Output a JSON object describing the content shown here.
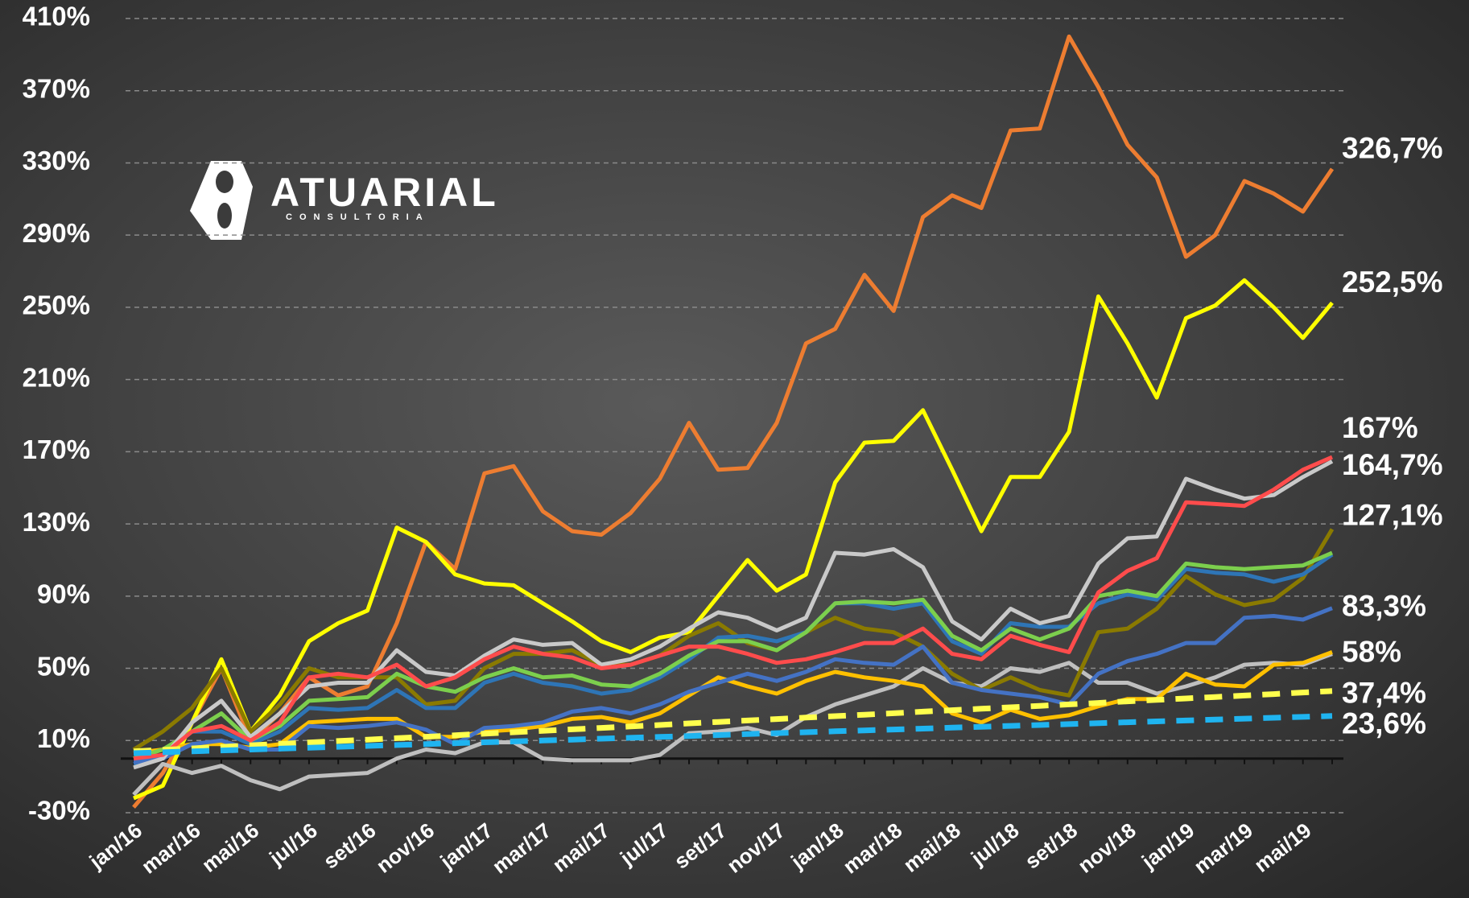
{
  "logo": {
    "name": "ATUARIAL",
    "subtitle": "CONSULTORIA"
  },
  "chart_data": {
    "type": "line",
    "categories": [
      "jan/16",
      null,
      "mar/16",
      null,
      "mai/16",
      null,
      "jul/16",
      null,
      "set/16",
      null,
      "nov/16",
      null,
      "jan/17",
      null,
      "mar/17",
      null,
      "mai/17",
      null,
      "jul/17",
      null,
      "set/17",
      null,
      "nov/17",
      null,
      "jan/18",
      null,
      "mar/18",
      null,
      "mai/18",
      null,
      "jul/18",
      null,
      "set/18",
      null,
      "nov/18",
      null,
      "jan/19",
      null,
      "mar/19",
      null,
      "mai/19",
      null
    ],
    "ylim": [
      -30,
      410
    ],
    "yticks": [
      {
        "value": -30,
        "label": "-30%"
      },
      {
        "value": 10,
        "label": "10%"
      },
      {
        "value": 50,
        "label": "50%"
      },
      {
        "value": 90,
        "label": "90%"
      },
      {
        "value": 130,
        "label": "130%"
      },
      {
        "value": 170,
        "label": "170%"
      },
      {
        "value": 210,
        "label": "210%"
      },
      {
        "value": 250,
        "label": "250%"
      },
      {
        "value": 290,
        "label": "290%"
      },
      {
        "value": 330,
        "label": "330%"
      },
      {
        "value": 370,
        "label": "370%"
      },
      {
        "value": 410,
        "label": "410%"
      }
    ],
    "grid": true,
    "series": [
      {
        "color": "#ed7d31",
        "label_color": "#ffc000",
        "end_label": "326,7%",
        "values": [
          -27,
          -8,
          20,
          50,
          10,
          25,
          45,
          35,
          40,
          75,
          120,
          105,
          158,
          162,
          137,
          126,
          124,
          136,
          155,
          186,
          160,
          161,
          186,
          230,
          238,
          268,
          248,
          300,
          312,
          305,
          348,
          349,
          400,
          372,
          340,
          322,
          278,
          290,
          320,
          313,
          303,
          326.7
        ]
      },
      {
        "color": "#ffff00",
        "label_color": "#ffff00",
        "end_label": "252,5%",
        "values": [
          -22,
          -15,
          20,
          55,
          15,
          35,
          65,
          75,
          82,
          128,
          120,
          102,
          97,
          96,
          86,
          76,
          65,
          59,
          67,
          70,
          90,
          110,
          93,
          102,
          153,
          175,
          176,
          193,
          160,
          126,
          156,
          156,
          181,
          256,
          230,
          200,
          244,
          251,
          265,
          250,
          233,
          252.5
        ]
      },
      {
        "color": "#bfbfbf",
        "label_color": "#ffffff",
        "end_label": "58%",
        "values": [
          -20,
          -3,
          -8,
          -4,
          -12,
          -17,
          -10,
          -9,
          -8,
          0,
          5,
          3,
          9,
          9,
          0,
          -1,
          -1,
          -1,
          2,
          14,
          15,
          17,
          13,
          23,
          30,
          35,
          40,
          50,
          42,
          40,
          50,
          48,
          53,
          42,
          42,
          36,
          40,
          45,
          52,
          53,
          52,
          58
        ]
      },
      {
        "color": "#ffc000",
        "values": [
          3,
          5,
          8,
          8,
          6,
          8,
          20,
          21,
          22,
          22,
          12,
          12,
          15,
          16,
          18,
          22,
          23,
          20,
          25,
          35,
          45,
          40,
          36,
          43,
          48,
          45,
          43,
          40,
          25,
          20,
          27,
          22,
          24,
          29,
          33,
          33,
          47,
          41,
          40,
          52,
          53,
          59
        ]
      },
      {
        "color": "#8a7a00",
        "label_color": "#8a7f10",
        "end_label": "127,1%",
        "values": [
          5,
          15,
          28,
          50,
          15,
          30,
          50,
          45,
          45,
          45,
          30,
          32,
          50,
          58,
          58,
          60,
          52,
          52,
          57,
          68,
          75,
          64,
          60,
          70,
          78,
          72,
          70,
          62,
          47,
          38,
          45,
          38,
          35,
          70,
          72,
          83,
          101,
          91,
          85,
          88,
          100,
          127.1
        ]
      },
      {
        "color": "#2e75b6",
        "values": [
          -3,
          2,
          15,
          15,
          8,
          15,
          28,
          27,
          28,
          38,
          28,
          28,
          42,
          47,
          42,
          40,
          36,
          38,
          45,
          55,
          67,
          68,
          65,
          70,
          86,
          86,
          83,
          86,
          65,
          58,
          75,
          73,
          73,
          86,
          91,
          88,
          105,
          103,
          102,
          98,
          102,
          113
        ]
      },
      {
        "color": "#7ccf4d",
        "values": [
          0,
          5,
          15,
          25,
          10,
          18,
          32,
          33,
          34,
          47,
          40,
          37,
          45,
          50,
          45,
          46,
          41,
          40,
          47,
          57,
          65,
          65,
          60,
          70,
          86,
          87,
          86,
          88,
          68,
          60,
          72,
          66,
          72,
          90,
          93,
          90,
          108,
          106,
          105,
          106,
          107,
          114
        ]
      },
      {
        "color": "#4472c4",
        "label_color": "#4a86e8",
        "end_label": "83,3%",
        "values": [
          -2,
          0,
          8,
          10,
          5,
          5,
          18,
          17,
          18,
          20,
          16,
          8,
          17,
          18,
          20,
          26,
          28,
          25,
          30,
          37,
          42,
          47,
          43,
          48,
          55,
          53,
          52,
          62,
          42,
          38,
          36,
          34,
          30,
          47,
          54,
          58,
          64,
          64,
          78,
          79,
          77,
          83.3
        ]
      },
      {
        "color": "#c9c9c9",
        "label_color": "#e0e0e0",
        "end_label": "164,7%",
        "values": [
          -5,
          0,
          20,
          32,
          12,
          25,
          40,
          42,
          42,
          60,
          48,
          46,
          57,
          66,
          63,
          64,
          52,
          55,
          62,
          72,
          81,
          78,
          71,
          78,
          114,
          113,
          116,
          106,
          76,
          66,
          83,
          75,
          79,
          108,
          122,
          123,
          155,
          149,
          144,
          146,
          156,
          164.7
        ]
      },
      {
        "color": "#ff4c4c",
        "label_color": "#ff4c4c",
        "end_label": "167%",
        "values": [
          0,
          2,
          15,
          18,
          10,
          20,
          45,
          47,
          45,
          52,
          40,
          45,
          55,
          62,
          58,
          56,
          50,
          52,
          57,
          62,
          62,
          58,
          53,
          55,
          59,
          64,
          64,
          72,
          58,
          55,
          68,
          63,
          59,
          92,
          104,
          111,
          142,
          141,
          140,
          149,
          160,
          167
        ]
      },
      {
        "color": "#ffff4d",
        "dashed": true,
        "label_color": "#ffff00",
        "end_label": "37,4%",
        "values": [
          4,
          4.8,
          5.6,
          6.4,
          7.3,
          8.1,
          8.9,
          9.7,
          10.5,
          11.3,
          12.1,
          12.9,
          13.8,
          14.6,
          15.4,
          16.2,
          17,
          17.8,
          18.6,
          19.5,
          20.3,
          21.1,
          21.9,
          22.7,
          23.5,
          24.3,
          25.1,
          26,
          26.8,
          27.6,
          28.4,
          29.2,
          30,
          30.8,
          31.7,
          32.5,
          33.3,
          34.1,
          34.9,
          35.7,
          36.6,
          37.4
        ]
      },
      {
        "color": "#1fb4f0",
        "dashed": true,
        "label_color": "#8a9ef0",
        "end_label": "23,6%",
        "values": [
          3,
          3.5,
          4,
          4.5,
          5,
          5.5,
          6,
          6.5,
          7,
          7.5,
          8,
          8.5,
          9,
          9.5,
          10,
          10.5,
          11,
          11.5,
          12,
          12.5,
          13,
          13.6,
          14.1,
          14.6,
          15.1,
          15.6,
          16.1,
          16.6,
          17.1,
          17.6,
          18.1,
          18.6,
          19.1,
          19.6,
          20.1,
          20.6,
          21.1,
          21.6,
          22.1,
          22.6,
          23.1,
          23.6
        ]
      }
    ]
  }
}
